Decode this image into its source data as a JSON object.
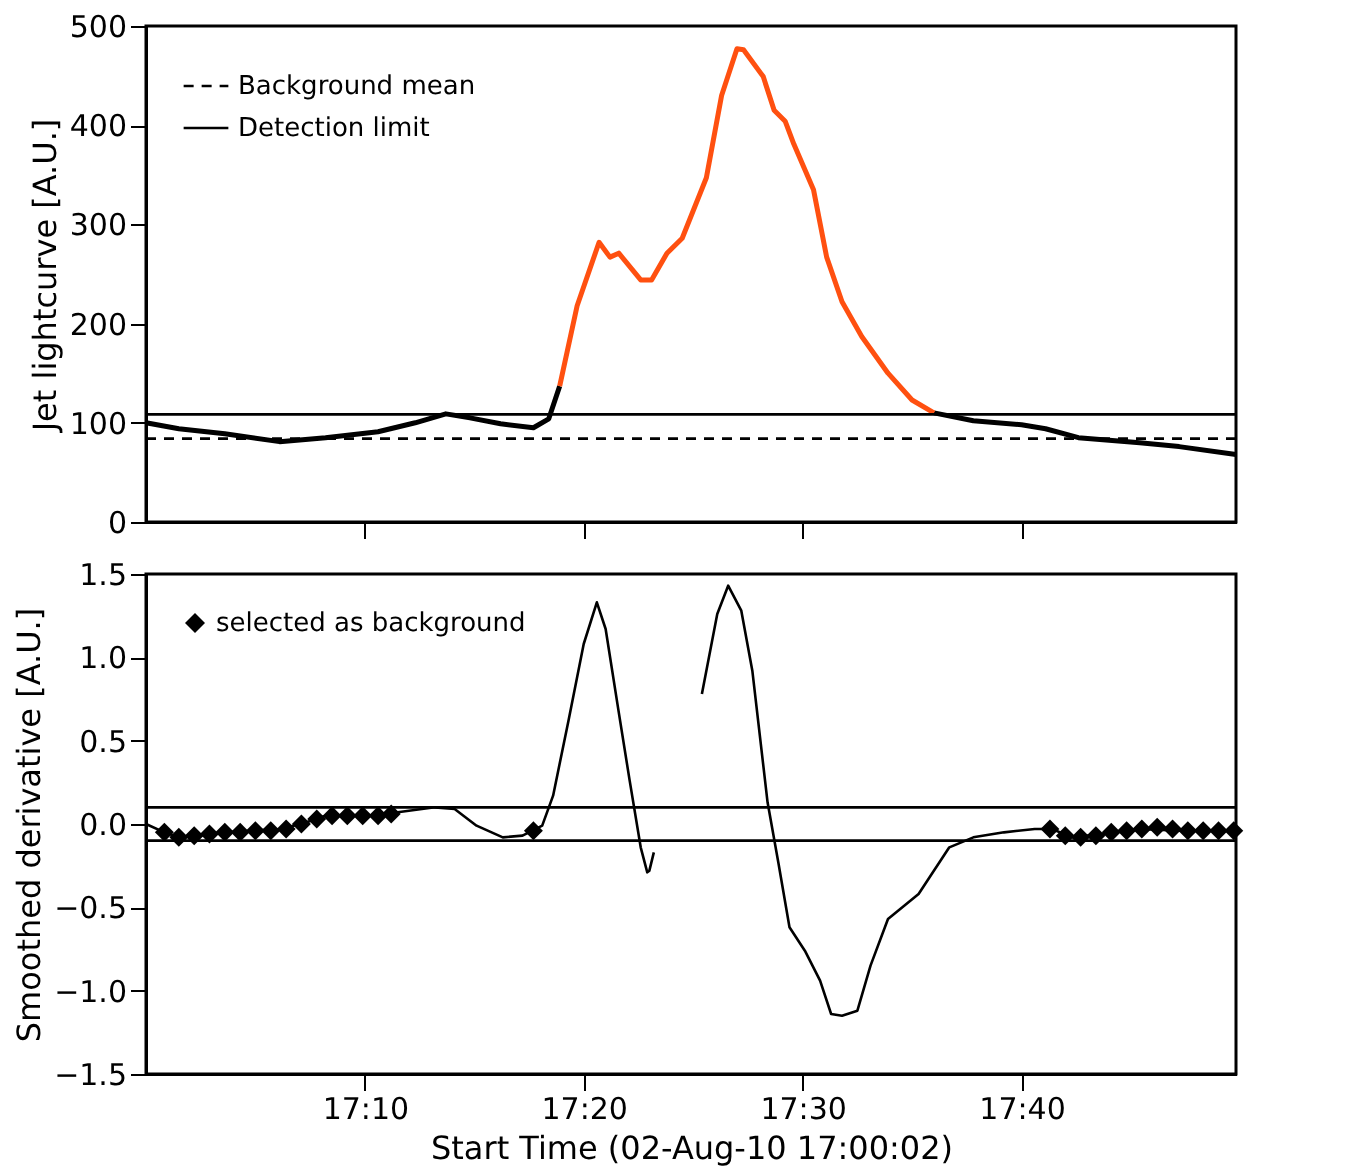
{
  "chart_data": [
    {
      "type": "line",
      "ylabel": "Jet lightcurve [A.U.]",
      "xlim": [
        17.0,
        17.83
      ],
      "ylim": [
        0,
        500
      ],
      "xticks": [
        {
          "value": 17.1667,
          "label": null
        },
        {
          "value": 17.3333,
          "label": null
        },
        {
          "value": 17.5,
          "label": null
        },
        {
          "value": 17.6667,
          "label": null
        }
      ],
      "yticks": [
        0,
        100,
        200,
        300,
        400,
        500
      ],
      "tick_labels": "y",
      "grid": false,
      "legend": "top left",
      "series": [
        {
          "color": "#000000",
          "x": [
            17.0,
            17.025,
            17.06,
            17.1017,
            17.1367,
            17.1767,
            17.205,
            17.2283,
            17.2467,
            17.27,
            17.295,
            17.3067,
            17.315,
            17.45,
            17.6,
            17.63,
            17.6667,
            17.685,
            17.71,
            17.7567,
            17.7867,
            17.83
          ],
          "values": [
            100,
            94,
            89,
            81,
            85,
            91,
            100,
            109,
            105,
            99,
            95,
            104,
            137,
            null,
            110,
            102,
            98,
            94,
            85,
            80,
            76,
            68
          ]
        },
        {
          "color": "#ff5010",
          "x": [
            17.315,
            17.3283,
            17.345,
            17.3533,
            17.36,
            17.3767,
            17.385,
            17.3967,
            17.4083,
            17.4267,
            17.4383,
            17.45,
            17.455,
            17.47,
            17.4783,
            17.4867,
            17.4933,
            17.5083,
            17.5183,
            17.53,
            17.545,
            17.565,
            17.5833,
            17.6
          ],
          "values": [
            137,
            218,
            282,
            267,
            271,
            244,
            244,
            271,
            286,
            347,
            430,
            477,
            476,
            449,
            415,
            404,
            381,
            335,
            267,
            222,
            187,
            150,
            123,
            110
          ]
        }
      ],
      "ref_lines": [
        {
          "axis": "y",
          "value": 84,
          "label": "Background mean",
          "color": "#000000",
          "line_style": "dashed"
        },
        {
          "axis": "y",
          "value": 108.5,
          "label": "Detection limit",
          "color": "#000000",
          "line_style": "solid"
        }
      ]
    },
    {
      "type": "line",
      "ylabel": "Smoothed derivative [A.U.]",
      "xlabel": "Start Time (02-Aug-10 17:00:02)",
      "xlim": [
        17.0,
        17.83
      ],
      "ylim": [
        -1.5,
        1.5
      ],
      "xticks": [
        {
          "value": 17.1667,
          "label": "17:10"
        },
        {
          "value": 17.3333,
          "label": "17:20"
        },
        {
          "value": 17.5,
          "label": "17:30"
        },
        {
          "value": 17.6667,
          "label": "17:40"
        }
      ],
      "yticks": [
        -1.5,
        {
          "value": -1.0,
          "label": "−1.0"
        },
        -0.5,
        {
          "value": 0.0,
          "label": "0.0"
        },
        0.5,
        {
          "value": 1.0,
          "label": "1.0"
        },
        1.5
      ],
      "grid": false,
      "legend": "top left",
      "series": [
        {
          "color": "#000000",
          "x": [
            17.0,
            17.014,
            17.025,
            17.06,
            17.1017,
            17.1183,
            17.1367,
            17.1767,
            17.1917,
            17.22,
            17.235,
            17.2517,
            17.2717,
            17.2867,
            17.3017,
            17.31,
            17.3217,
            17.3333,
            17.3433,
            17.35,
            17.36,
            17.3683,
            17.3767,
            17.3817,
            17.3833,
            17.3867,
            17.405,
            17.4233,
            17.435,
            17.4433,
            17.4533,
            17.4617,
            17.4733,
            17.4817,
            17.49,
            17.5017,
            17.5133,
            17.5217,
            17.53,
            17.5417,
            17.5517,
            17.565,
            17.5883,
            17.6117,
            17.63,
            17.6533,
            17.6767,
            17.69,
            17.705,
            17.7283,
            17.7567,
            17.7867,
            17.83
          ],
          "values": [
            0.0,
            -0.05,
            -0.08,
            -0.05,
            -0.03,
            0.0,
            0.05,
            0.05,
            0.07,
            0.1,
            0.09,
            -0.01,
            -0.08,
            -0.07,
            -0.01,
            0.17,
            0.62,
            1.08,
            1.33,
            1.17,
            0.67,
            0.26,
            -0.14,
            -0.29,
            -0.28,
            -0.17,
            null,
            0.78,
            1.26,
            1.43,
            1.28,
            0.92,
            0.13,
            -0.24,
            -0.62,
            -0.76,
            -0.94,
            -1.14,
            -1.15,
            -1.12,
            -0.85,
            -0.57,
            -0.42,
            -0.14,
            -0.08,
            -0.05,
            -0.03,
            -0.03,
            -0.08,
            -0.06,
            -0.03,
            -0.04,
            -0.04
          ]
        },
        {
          "type": "scatter",
          "name": "selected as background",
          "color": "#000000",
          "marker": "diamond",
          "x": [
            17.014,
            17.025,
            17.0367,
            17.0483,
            17.06,
            17.0717,
            17.0833,
            17.095,
            17.1067,
            17.1183,
            17.13,
            17.1417,
            17.1533,
            17.165,
            17.1767,
            17.1867,
            17.295,
            17.6883,
            17.7,
            17.7117,
            17.7233,
            17.735,
            17.7467,
            17.7583,
            17.77,
            17.7817,
            17.7933,
            17.805,
            17.8167,
            17.8283
          ],
          "values": [
            -0.05,
            -0.08,
            -0.07,
            -0.06,
            -0.05,
            -0.05,
            -0.04,
            -0.04,
            -0.03,
            0.0,
            0.03,
            0.05,
            0.05,
            0.05,
            0.05,
            0.06,
            -0.04,
            -0.03,
            -0.07,
            -0.08,
            -0.07,
            -0.05,
            -0.04,
            -0.03,
            -0.02,
            -0.03,
            -0.04,
            -0.04,
            -0.04,
            -0.04
          ]
        }
      ],
      "ref_lines": [
        {
          "axis": "y",
          "value": 0.1,
          "color": "#000000"
        },
        {
          "axis": "y",
          "value": -0.1,
          "color": "#000000"
        }
      ]
    }
  ]
}
